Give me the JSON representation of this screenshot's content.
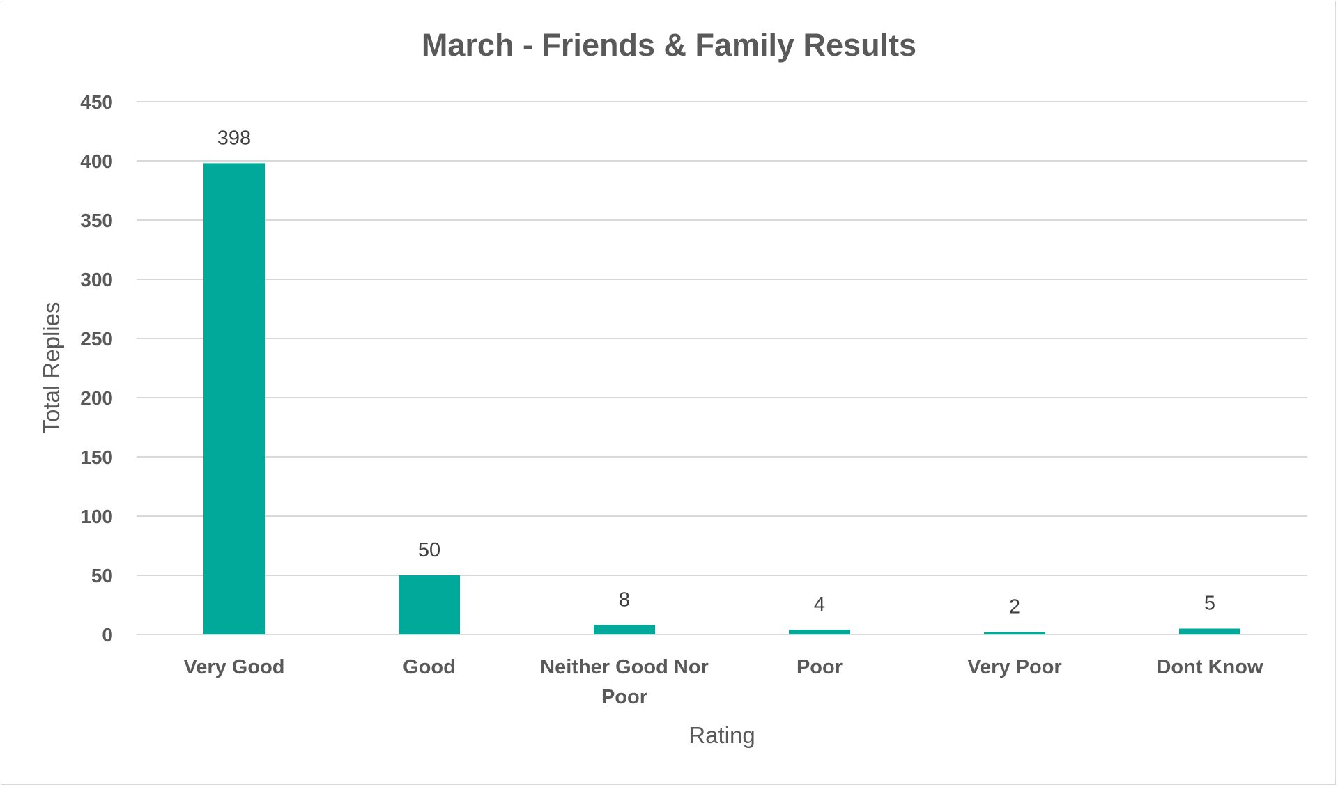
{
  "chart_data": {
    "type": "bar",
    "title": "March - Friends & Family Results",
    "xlabel": "Rating",
    "ylabel": "Total Replies",
    "categories": [
      "Very Good",
      "Good",
      "Neither Good Nor Poor",
      "Poor",
      "Very Poor",
      "Dont Know"
    ],
    "category_lines": [
      [
        "Very Good"
      ],
      [
        "Good"
      ],
      [
        "Neither Good Nor",
        "Poor"
      ],
      [
        "Poor"
      ],
      [
        "Very Poor"
      ],
      [
        "Dont Know"
      ]
    ],
    "values": [
      398,
      50,
      8,
      4,
      2,
      5
    ],
    "ylim": [
      0,
      450
    ],
    "yticks": [
      0,
      50,
      100,
      150,
      200,
      250,
      300,
      350,
      400,
      450
    ],
    "grid": true,
    "data_labels": true,
    "bar_color": "#00A99A"
  }
}
